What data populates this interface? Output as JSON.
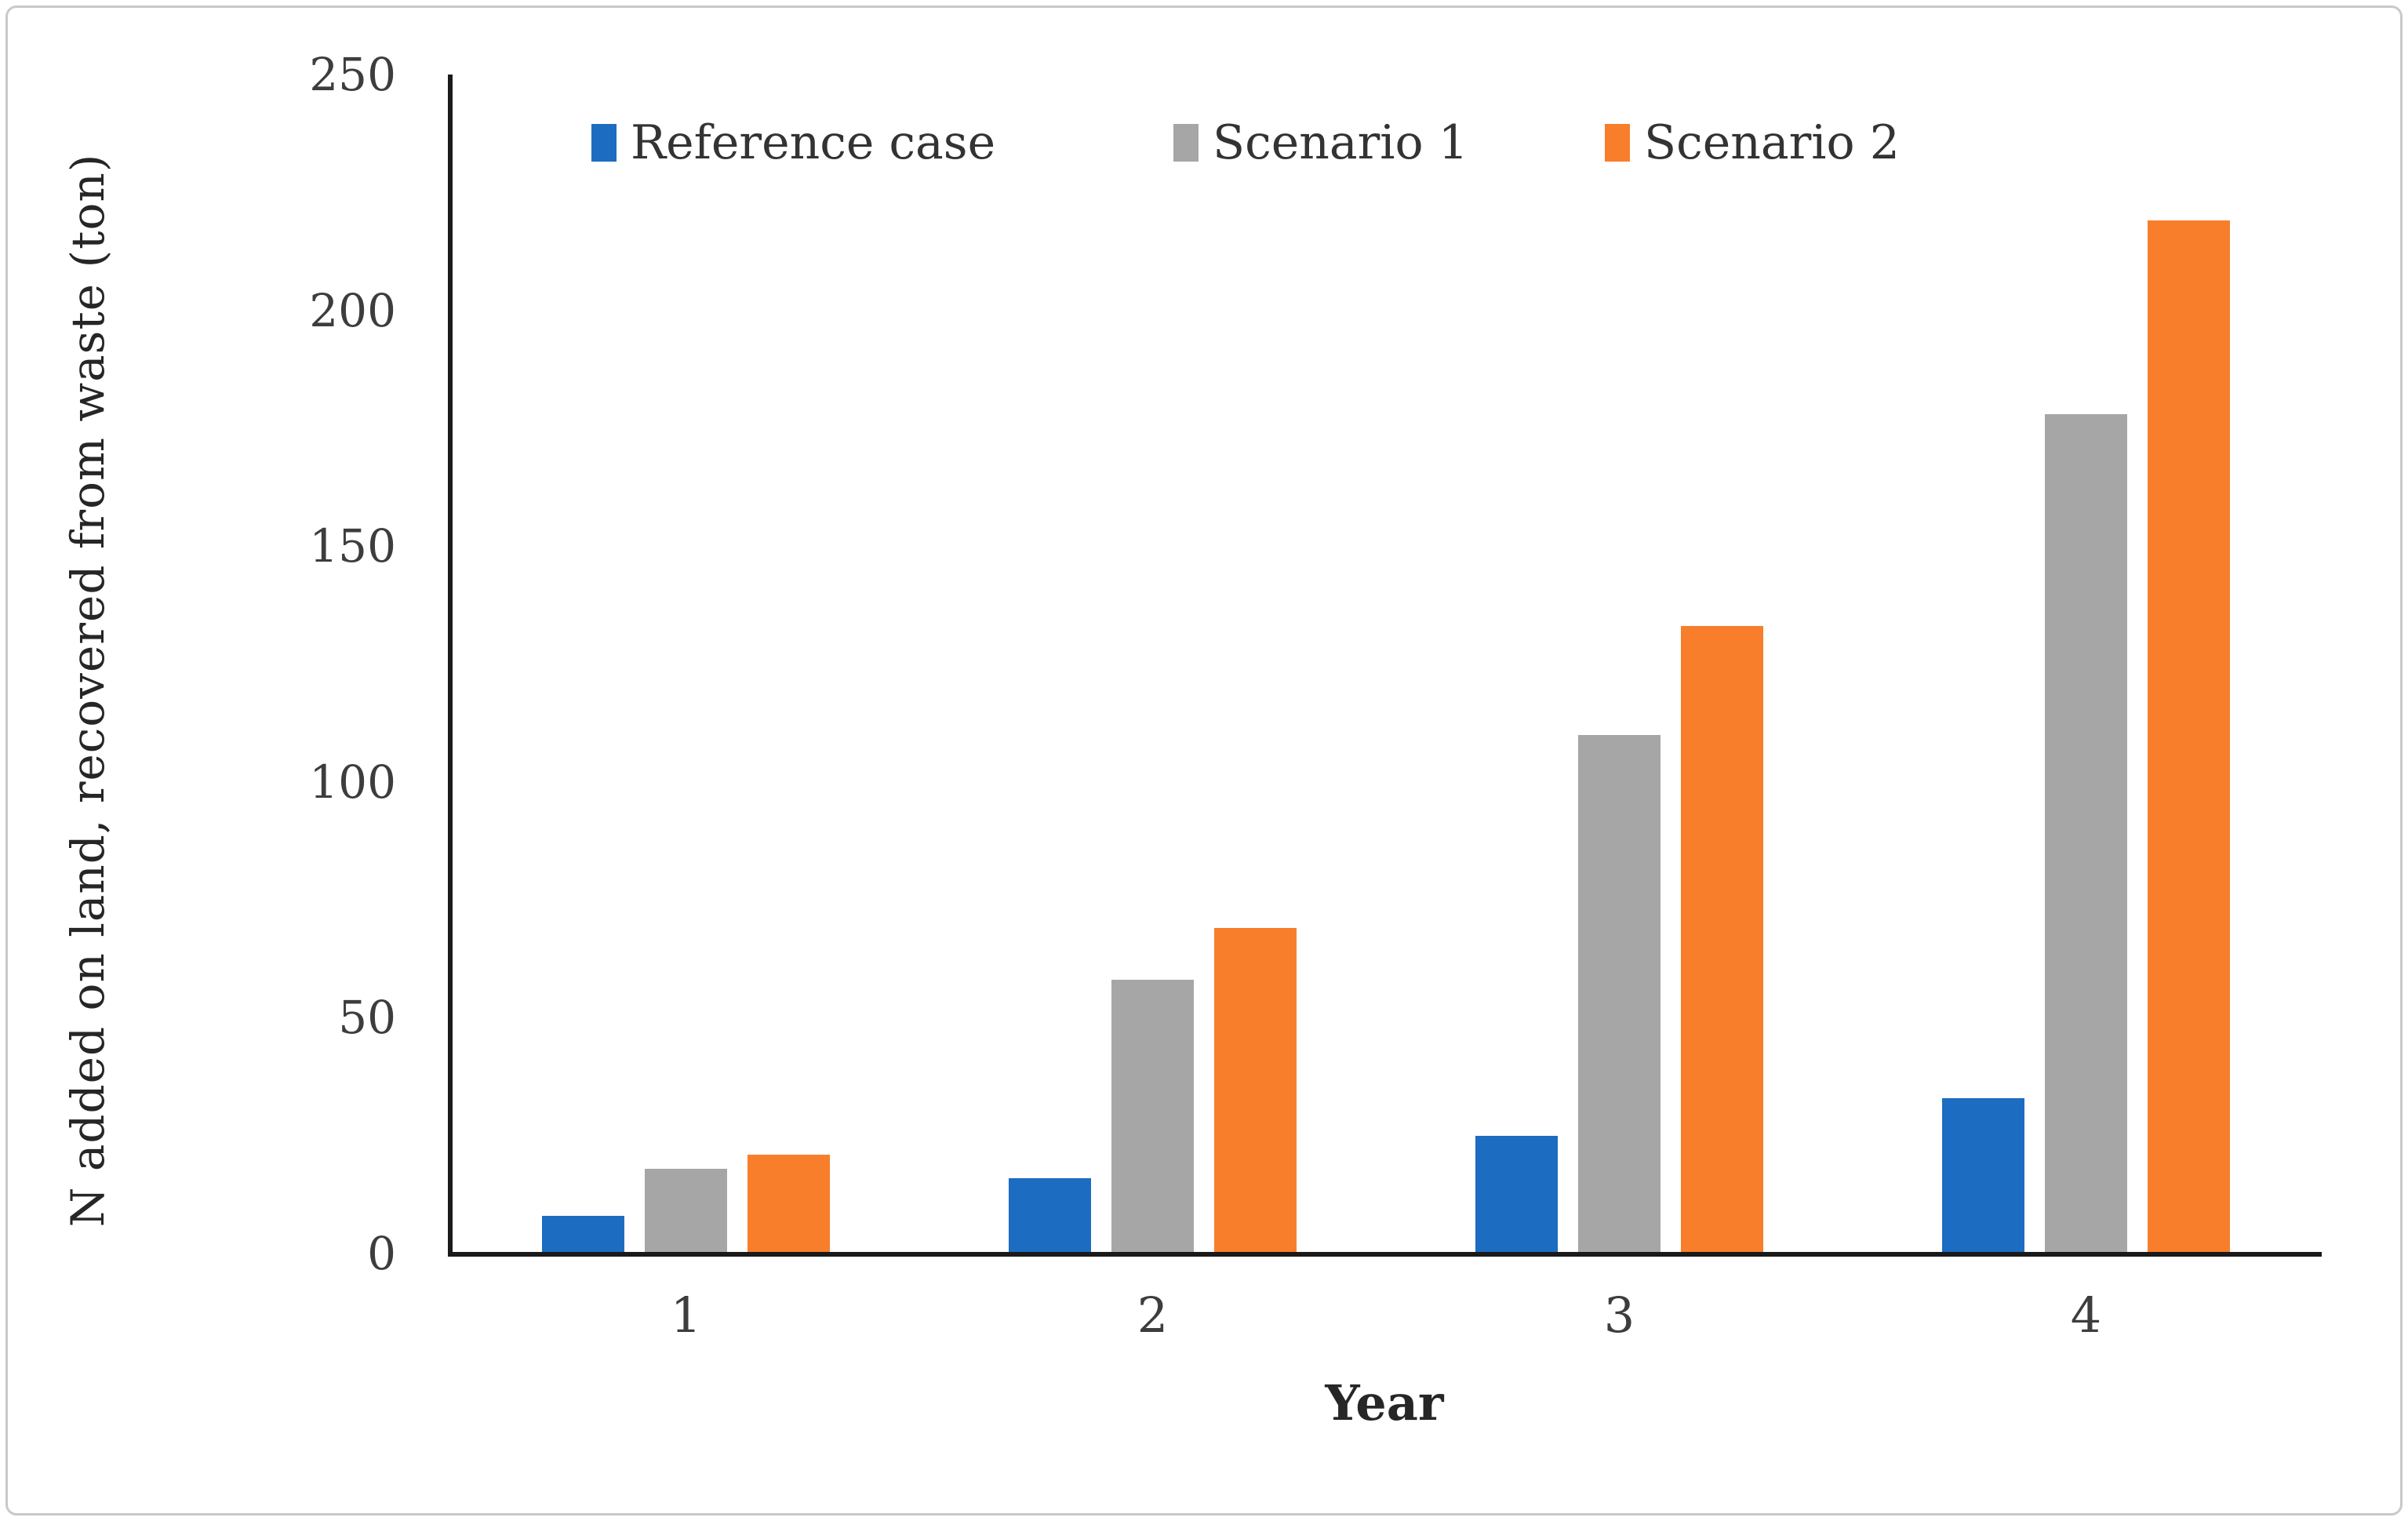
{
  "figure": {
    "background": "#ffffff",
    "frame_color": "#c9c9c9",
    "axis_line_color": "#1a1a1a",
    "tick_text_color": "#3d3d3d"
  },
  "chart_data": {
    "type": "bar",
    "title": "",
    "xlabel": "Year",
    "ylabel": "N added on land, recovered from waste (ton)",
    "categories": [
      "1",
      "2",
      "3",
      "4"
    ],
    "series": [
      {
        "name": "Reference case",
        "color": "#1c6dc1",
        "values": [
          8,
          16,
          25,
          33
        ]
      },
      {
        "name": "Scenario 1",
        "color": "#a6a6a6",
        "values": [
          18,
          58,
          110,
          178
        ]
      },
      {
        "name": "Scenario 2",
        "color": "#f87e2b",
        "values": [
          21,
          69,
          133,
          219
        ]
      }
    ],
    "ylim": [
      0,
      250
    ],
    "ytick_step": 50,
    "yticks": [
      "0",
      "50",
      "100",
      "150",
      "200",
      "250"
    ],
    "grid": false,
    "legend_position": "top-inside"
  }
}
